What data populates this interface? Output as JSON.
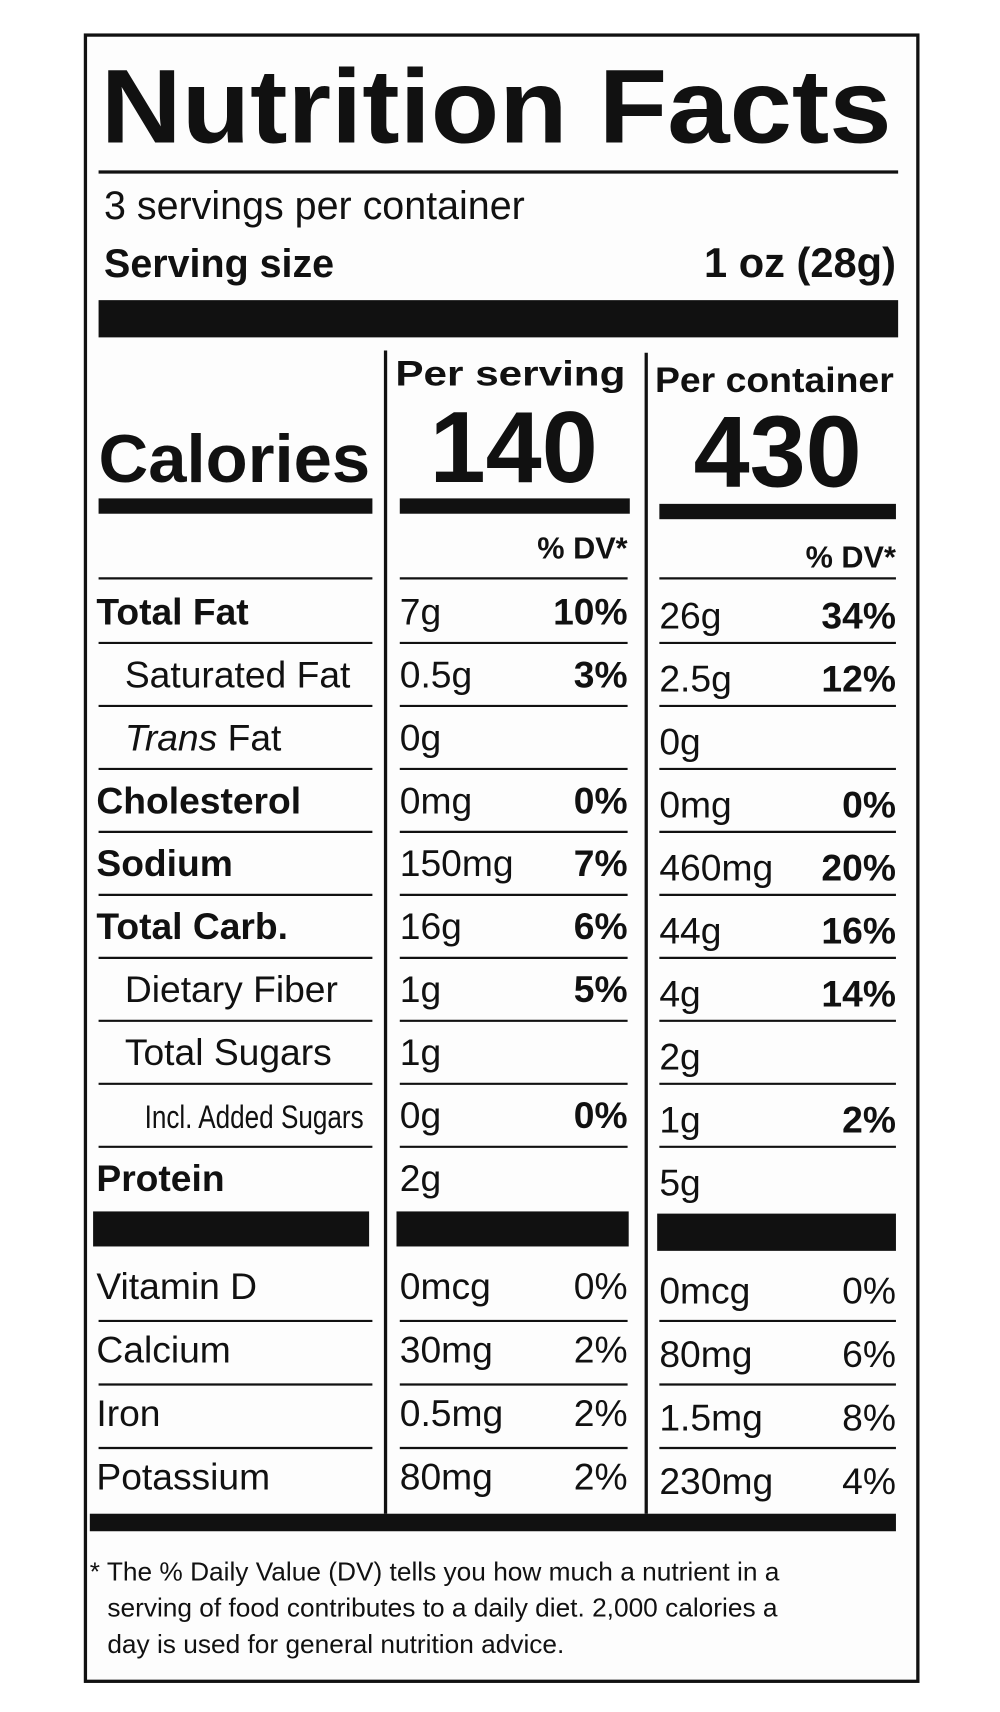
{
  "title": "Nutrition Facts",
  "servings": "3 servings per container",
  "serving_size": {
    "label": "Serving size",
    "value": "1 oz (28g)"
  },
  "calories_label": "Calories",
  "columns": [
    {
      "header": "Per serving",
      "calories": "140",
      "dv_header": "% DV*"
    },
    {
      "header": "Per container",
      "calories": "430",
      "dv_header": "% DV*"
    }
  ],
  "nutrients": [
    {
      "name": "Total Fat",
      "style": "bold",
      "values": [
        [
          "7g",
          "10%"
        ],
        [
          "26g",
          "34%"
        ]
      ]
    },
    {
      "name": "Saturated Fat",
      "style": "indent",
      "values": [
        [
          "0.5g",
          "3%"
        ],
        [
          "2.5g",
          "12%"
        ]
      ]
    },
    {
      "italic": "Trans",
      "name": "Fat",
      "style": "indent",
      "values": [
        [
          "0g",
          null
        ],
        [
          "0g",
          null
        ]
      ]
    },
    {
      "name": "Cholesterol",
      "style": "bold",
      "values": [
        [
          "0mg",
          "0%"
        ],
        [
          "0mg",
          "0%"
        ]
      ]
    },
    {
      "name": "Sodium",
      "style": "bold",
      "values": [
        [
          "150mg",
          "7%"
        ],
        [
          "460mg",
          "20%"
        ]
      ]
    },
    {
      "name": "Total Carb.",
      "style": "bold",
      "values": [
        [
          "16g",
          "6%"
        ],
        [
          "44g",
          "16%"
        ]
      ]
    },
    {
      "name": "Dietary Fiber",
      "style": "indent",
      "values": [
        [
          "1g",
          "5%"
        ],
        [
          "4g",
          "14%"
        ]
      ]
    },
    {
      "name": "Total Sugars",
      "style": "indent",
      "values": [
        [
          "1g",
          null
        ],
        [
          "2g",
          null
        ]
      ]
    },
    {
      "name": "Incl. Added Sugars",
      "style": "indent2",
      "values": [
        [
          "0g",
          "0%"
        ],
        [
          "1g",
          "2%"
        ]
      ]
    },
    {
      "name": "Protein",
      "style": "bold",
      "values": [
        [
          "2g",
          null
        ],
        [
          "5g",
          null
        ]
      ]
    }
  ],
  "vitamins": [
    {
      "name": "Vitamin D",
      "values": [
        [
          "0mcg",
          "0%"
        ],
        [
          "0mcg",
          "0%"
        ]
      ]
    },
    {
      "name": "Calcium",
      "values": [
        [
          "30mg",
          "2%"
        ],
        [
          "80mg",
          "6%"
        ]
      ]
    },
    {
      "name": "Iron",
      "values": [
        [
          "0.5mg",
          "2%"
        ],
        [
          "1.5mg",
          "8%"
        ]
      ]
    },
    {
      "name": "Potassium",
      "values": [
        [
          "80mg",
          "2%"
        ],
        [
          "230mg",
          "4%"
        ]
      ]
    }
  ],
  "footnote": [
    "* The % Daily Value (DV) tells you how much a nutrient in a",
    "serving of food contributes to a daily diet. 2,000 calories a",
    "day is used for general nutrition advice."
  ]
}
